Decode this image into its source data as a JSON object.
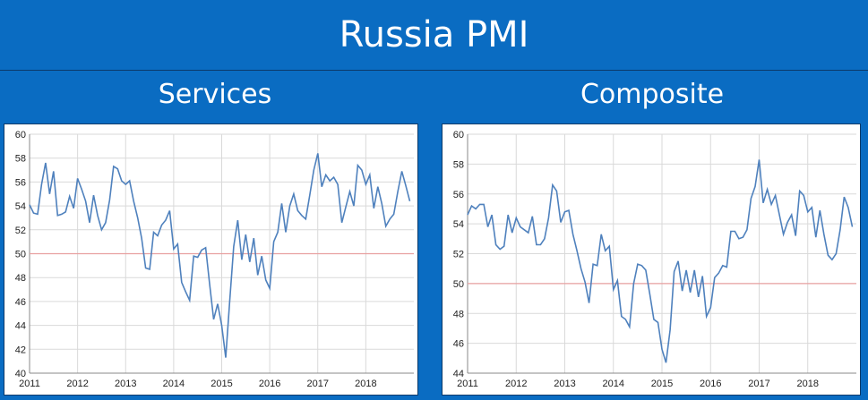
{
  "header": {
    "title": "Russia PMI"
  },
  "chart_data": [
    {
      "type": "line",
      "title": "Services",
      "xlabel": "",
      "ylabel": "",
      "xlim": [
        2011,
        2019
      ],
      "ylim": [
        40,
        60
      ],
      "yticks": [
        40,
        42,
        44,
        46,
        48,
        50,
        52,
        54,
        56,
        58,
        60
      ],
      "xticks": [
        "2011",
        "2012",
        "2013",
        "2014",
        "2015",
        "2016",
        "2017",
        "2018"
      ],
      "reference_line": {
        "value": 50,
        "color": "#e8a0a0"
      },
      "series": [
        {
          "color": "#4f81bd",
          "x": [
            2011.0,
            2011.083,
            2011.167,
            2011.25,
            2011.333,
            2011.417,
            2011.5,
            2011.583,
            2011.667,
            2011.75,
            2011.833,
            2011.917,
            2012.0,
            2012.083,
            2012.167,
            2012.25,
            2012.333,
            2012.417,
            2012.5,
            2012.583,
            2012.667,
            2012.75,
            2012.833,
            2012.917,
            2013.0,
            2013.083,
            2013.167,
            2013.25,
            2013.333,
            2013.417,
            2013.5,
            2013.583,
            2013.667,
            2013.75,
            2013.833,
            2013.917,
            2014.0,
            2014.083,
            2014.167,
            2014.25,
            2014.333,
            2014.417,
            2014.5,
            2014.583,
            2014.667,
            2014.75,
            2014.833,
            2014.917,
            2015.0,
            2015.083,
            2015.167,
            2015.25,
            2015.333,
            2015.417,
            2015.5,
            2015.583,
            2015.667,
            2015.75,
            2015.833,
            2015.917,
            2016.0,
            2016.083,
            2016.167,
            2016.25,
            2016.333,
            2016.417,
            2016.5,
            2016.583,
            2016.667,
            2016.75,
            2016.833,
            2016.917,
            2017.0,
            2017.083,
            2017.167,
            2017.25,
            2017.333,
            2017.417,
            2017.5,
            2017.583,
            2017.667,
            2017.75,
            2017.833,
            2017.917,
            2018.0,
            2018.083,
            2018.167,
            2018.25,
            2018.333,
            2018.417,
            2018.5,
            2018.583,
            2018.667,
            2018.75,
            2018.833,
            2018.917
          ],
          "values": [
            54.1,
            53.4,
            53.3,
            55.8,
            57.6,
            55.0,
            56.9,
            53.2,
            53.3,
            53.5,
            54.8,
            53.8,
            56.3,
            55.4,
            54.4,
            52.6,
            54.9,
            53.2,
            52.0,
            52.6,
            54.5,
            57.3,
            57.1,
            56.1,
            55.8,
            56.1,
            54.4,
            53.0,
            51.3,
            48.8,
            48.7,
            51.8,
            51.5,
            52.4,
            52.8,
            53.6,
            50.4,
            50.8,
            47.6,
            46.8,
            46.1,
            49.8,
            49.7,
            50.3,
            50.5,
            47.4,
            44.5,
            45.8,
            44.0,
            41.3,
            46.1,
            50.6,
            52.8,
            49.5,
            51.6,
            49.3,
            51.3,
            48.2,
            49.8,
            47.8,
            47.1,
            51.0,
            51.8,
            54.2,
            51.8,
            54.0,
            55.0,
            53.6,
            53.2,
            52.9,
            54.9,
            57.0,
            58.4,
            55.6,
            56.6,
            56.1,
            56.4,
            55.8,
            52.6,
            53.9,
            55.2,
            54.0,
            57.4,
            57.0,
            55.8,
            56.6,
            53.8,
            55.6,
            54.2,
            52.3,
            52.9,
            53.3,
            55.2,
            56.9,
            55.7,
            54.4
          ]
        }
      ]
    },
    {
      "type": "line",
      "title": "Composite",
      "xlabel": "",
      "ylabel": "",
      "xlim": [
        2011,
        2019
      ],
      "ylim": [
        44,
        60
      ],
      "yticks": [
        44,
        46,
        48,
        50,
        52,
        54,
        56,
        58,
        60
      ],
      "xticks": [
        "2011",
        "2012",
        "2013",
        "2014",
        "2015",
        "2016",
        "2017",
        "2018"
      ],
      "reference_line": {
        "value": 50,
        "color": "#e8a0a0"
      },
      "series": [
        {
          "color": "#4f81bd",
          "x": [
            2011.0,
            2011.083,
            2011.167,
            2011.25,
            2011.333,
            2011.417,
            2011.5,
            2011.583,
            2011.667,
            2011.75,
            2011.833,
            2011.917,
            2012.0,
            2012.083,
            2012.167,
            2012.25,
            2012.333,
            2012.417,
            2012.5,
            2012.583,
            2012.667,
            2012.75,
            2012.833,
            2012.917,
            2013.0,
            2013.083,
            2013.167,
            2013.25,
            2013.333,
            2013.417,
            2013.5,
            2013.583,
            2013.667,
            2013.75,
            2013.833,
            2013.917,
            2014.0,
            2014.083,
            2014.167,
            2014.25,
            2014.333,
            2014.417,
            2014.5,
            2014.583,
            2014.667,
            2014.75,
            2014.833,
            2014.917,
            2015.0,
            2015.083,
            2015.167,
            2015.25,
            2015.333,
            2015.417,
            2015.5,
            2015.583,
            2015.667,
            2015.75,
            2015.833,
            2015.917,
            2016.0,
            2016.083,
            2016.167,
            2016.25,
            2016.333,
            2016.417,
            2016.5,
            2016.583,
            2016.667,
            2016.75,
            2016.833,
            2016.917,
            2017.0,
            2017.083,
            2017.167,
            2017.25,
            2017.333,
            2017.417,
            2017.5,
            2017.583,
            2017.667,
            2017.75,
            2017.833,
            2017.917,
            2018.0,
            2018.083,
            2018.167,
            2018.25,
            2018.333,
            2018.417,
            2018.5,
            2018.583,
            2018.667,
            2018.75,
            2018.833,
            2018.917
          ],
          "values": [
            54.6,
            55.2,
            55.0,
            55.3,
            55.3,
            53.8,
            54.6,
            52.6,
            52.3,
            52.5,
            54.6,
            53.4,
            54.4,
            53.8,
            53.6,
            53.4,
            54.5,
            52.6,
            52.6,
            53.0,
            54.4,
            56.6,
            56.2,
            54.1,
            54.8,
            54.9,
            53.3,
            52.2,
            51.0,
            50.1,
            48.7,
            51.3,
            51.2,
            53.3,
            52.2,
            52.5,
            49.6,
            50.2,
            47.8,
            47.6,
            47.1,
            50.0,
            51.3,
            51.2,
            50.9,
            49.3,
            47.6,
            47.4,
            45.6,
            44.7,
            46.9,
            50.8,
            51.5,
            49.5,
            50.9,
            49.4,
            50.9,
            49.1,
            50.5,
            47.8,
            48.4,
            50.4,
            50.7,
            51.2,
            51.1,
            53.5,
            53.5,
            53.0,
            53.1,
            53.6,
            55.7,
            56.5,
            58.3,
            55.4,
            56.3,
            55.3,
            55.9,
            54.6,
            53.3,
            54.1,
            54.6,
            53.2,
            56.2,
            55.9,
            54.8,
            55.1,
            53.1,
            54.9,
            53.3,
            51.9,
            51.6,
            52.0,
            53.6,
            55.8,
            55.1,
            53.8
          ]
        }
      ]
    }
  ]
}
